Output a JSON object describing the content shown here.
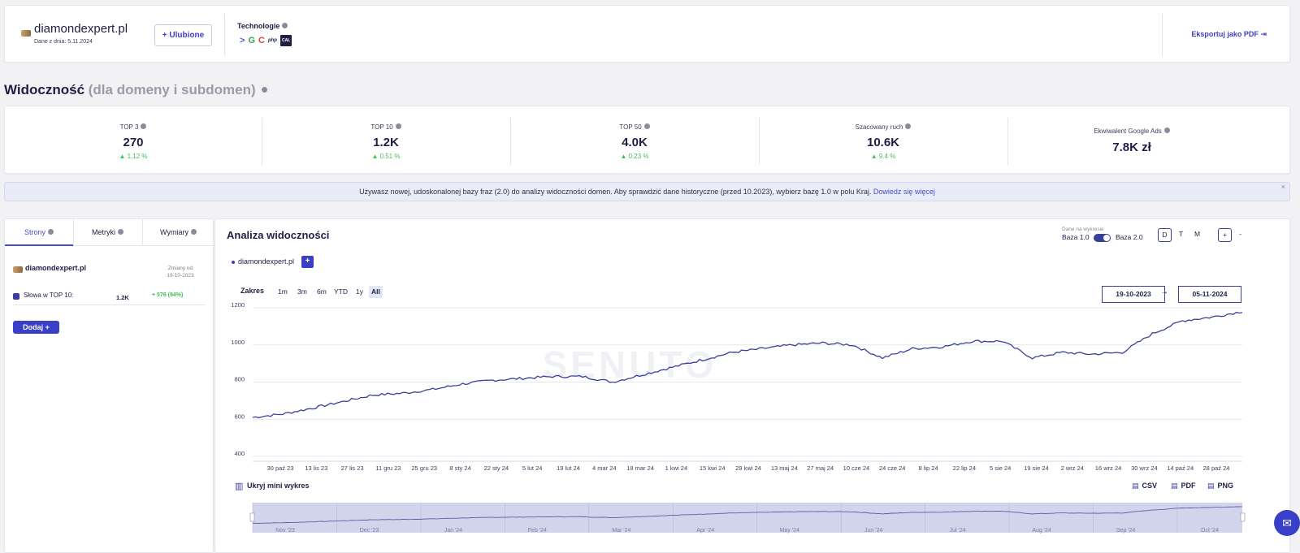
{
  "header": {
    "domain": "diamondexpert.pl",
    "date_label": "Dane z dnia: 5.11.2024",
    "favorite_label": "+ Ulubione",
    "tech_label": "Technologie",
    "tech_icons": [
      ">",
      "G",
      "C",
      "php",
      "CAL"
    ],
    "export_label": "Eksportuj jako PDF"
  },
  "section": {
    "title": "Widoczność",
    "subtitle": "(dla domeny i subdomen)"
  },
  "metrics": [
    {
      "label": "TOP 3",
      "value": "270",
      "change": "1.12 %"
    },
    {
      "label": "TOP 10",
      "value": "1.2K",
      "change": "0.51 %"
    },
    {
      "label": "TOP 50",
      "value": "4.0K",
      "change": "0.23 %"
    },
    {
      "label": "Szacowany ruch",
      "value": "10.6K",
      "change": "9.4 %"
    },
    {
      "label": "Ekwiwalent Google Ads",
      "value": "7.8K zł",
      "change": ""
    }
  ],
  "banner": {
    "text": "Używasz nowej, udoskonalonej bazy fraz (2.0) do analizy widoczności domen. Aby sprawdzić dane historyczne (przed 10.2023), wybierz bazę 1.0 w polu Kraj.",
    "link": "Dowiedz się więcej",
    "close": "×"
  },
  "left_panel": {
    "tabs": [
      "Strony",
      "Metryki",
      "Wymiary"
    ],
    "domain": "diamondexpert.pl",
    "changes_label": "Zmiany od",
    "changes_date": "19-10-2023",
    "metric_label": "Słowa w TOP 10:",
    "metric_value": "1.2K",
    "metric_change": "+ 576 (94%)",
    "add_label": "Dodaj +"
  },
  "chart_panel": {
    "title": "Analiza widoczności",
    "dane_label": "Dane na wykresie",
    "baza1": "Baza 1.0",
    "baza2": "Baza 2.0",
    "granularity": [
      "D",
      "T",
      "M"
    ],
    "zoom_in": "+",
    "zoom_out": "-",
    "legend_domain": "diamondexpert.pl",
    "legend_add": "+",
    "range_label": "Zakres",
    "ranges": [
      "1m",
      "3m",
      "6m",
      "YTD",
      "1y",
      "All"
    ],
    "selected_range": "All",
    "date_from": "19-10-2023",
    "date_arrow": "→",
    "date_to": "05-11-2024",
    "watermark": "SENUTO",
    "mini_label": "Ukryj mini wykres",
    "downloads": [
      "CSV",
      "PDF",
      "PNG"
    ],
    "mini_months": [
      "Nov '23",
      "Dec '23",
      "Jan '24",
      "Feb '24",
      "Mar '24",
      "Apr '24",
      "May '24",
      "Jun '24",
      "Jul '24",
      "Aug '24",
      "Sep '24",
      "Oct '24"
    ]
  },
  "chart_data": {
    "type": "line",
    "series": [
      {
        "name": "diamondexpert.pl",
        "color": "#3a3f9c",
        "values": [
          610,
          628,
          660,
          695,
          730,
          740,
          760,
          790,
          810,
          820,
          830,
          830,
          800,
          840,
          880,
          920,
          960,
          980,
          1000,
          1010,
          1000,
          930,
          980,
          990,
          1020,
          1020,
          930,
          960,
          950,
          960,
          1060,
          1130,
          1150,
          1180
        ]
      }
    ],
    "x": [
      "30 paź 23",
      "6 lis 23",
      "13 lis 23",
      "20 lis 23",
      "27 lis 23",
      "4 gru 23",
      "11 gru 23",
      "25 gru 23",
      "8 sty 24",
      "22 sty 24",
      "5 lut 24",
      "12 lut 24",
      "19 lut 24",
      "4 mar 24",
      "18 mar 24",
      "1 kwi 24",
      "15 kwi 24",
      "29 kwi 24",
      "13 maj 24",
      "20 maj 24",
      "27 maj 24",
      "10 cze 24",
      "24 cze 24",
      "8 lip 24",
      "22 lip 24",
      "29 lip 24",
      "5 sie 24",
      "19 sie 24",
      "2 wrz 24",
      "16 wrz 24",
      "30 wrz 24",
      "14 paź 24",
      "21 paź 24",
      "28 paź 24"
    ],
    "x_tick_labels": [
      "30 paź 23",
      "13 lis 23",
      "27 lis 23",
      "11 gru 23",
      "25 gru 23",
      "8 sty 24",
      "22 sty 24",
      "5 lut 24",
      "19 lut 24",
      "4 mar 24",
      "18 mar 24",
      "1 kwi 24",
      "15 kwi 24",
      "29 kwi 24",
      "13 maj 24",
      "27 maj 24",
      "10 cze 24",
      "24 cze 24",
      "8 lip 24",
      "22 lip 24",
      "5 sie 24",
      "19 sie 24",
      "2 wrz 24",
      "16 wrz 24",
      "30 wrz 24",
      "14 paź 24",
      "28 paź 24"
    ],
    "y_ticks": [
      400,
      600,
      800,
      1000,
      1200
    ],
    "ylim": [
      400,
      1200
    ],
    "grid": true
  }
}
